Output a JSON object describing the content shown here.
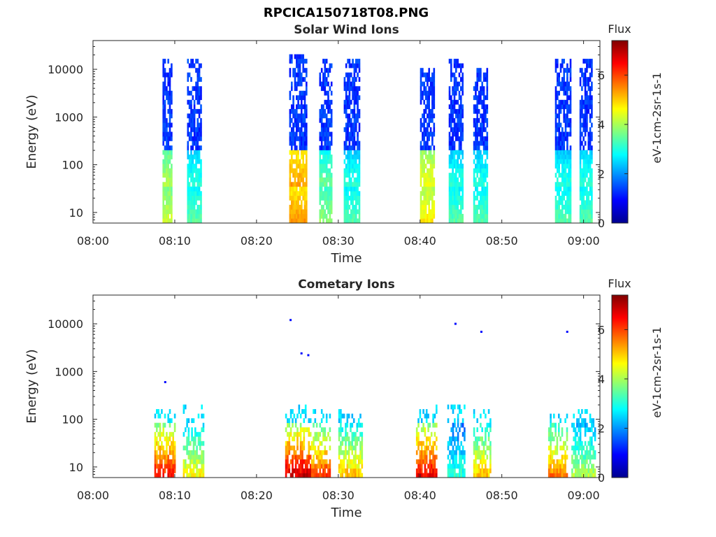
{
  "figure": {
    "title_line1": "RPCICA150718T08.PNG"
  },
  "colormap": "jet",
  "chart_data": [
    {
      "type": "heatmap",
      "title": "Solar Wind Ions",
      "xlabel": "Time",
      "ylabel": "Energy (eV)",
      "x_range_minutes": [
        0,
        62
      ],
      "y_scale": "log",
      "ylim": [
        6,
        40000
      ],
      "x_ticks": [
        "08:00",
        "08:10",
        "08:20",
        "08:30",
        "08:40",
        "08:50",
        "09:00"
      ],
      "y_ticks": [
        "10",
        "100",
        "1000",
        "10000"
      ],
      "colorbar": {
        "title": "Flux",
        "label": "eV-1cm-2sr-1s-1",
        "range": [
          0,
          7.4
        ],
        "ticks": [
          "0",
          "2",
          "4",
          "6"
        ]
      },
      "bursts": [
        {
          "t_start": "08:08:30",
          "t_end": "08:09:30",
          "e_min": 6,
          "e_max": 14000,
          "peak_flux": 5.0
        },
        {
          "t_start": "08:11:30",
          "t_end": "08:13:10",
          "e_min": 6,
          "e_max": 14000,
          "peak_flux": 4.0
        },
        {
          "t_start": "08:24:00",
          "t_end": "08:26:00",
          "e_min": 6,
          "e_max": 20000,
          "peak_flux": 6.2
        },
        {
          "t_start": "08:27:40",
          "t_end": "08:29:10",
          "e_min": 6,
          "e_max": 14000,
          "peak_flux": 4.5
        },
        {
          "t_start": "08:30:40",
          "t_end": "08:32:30",
          "e_min": 6,
          "e_max": 14000,
          "peak_flux": 4.0
        },
        {
          "t_start": "08:40:00",
          "t_end": "08:41:40",
          "e_min": 6,
          "e_max": 10000,
          "peak_flux": 5.5
        },
        {
          "t_start": "08:43:30",
          "t_end": "08:45:10",
          "e_min": 6,
          "e_max": 14000,
          "peak_flux": 4.0
        },
        {
          "t_start": "08:46:30",
          "t_end": "08:48:10",
          "e_min": 6,
          "e_max": 10000,
          "peak_flux": 4.0
        },
        {
          "t_start": "08:56:30",
          "t_end": "08:58:20",
          "e_min": 6,
          "e_max": 14000,
          "peak_flux": 4.0
        },
        {
          "t_start": "08:59:30",
          "t_end": "09:01:00",
          "e_min": 6,
          "e_max": 14000,
          "peak_flux": 4.0
        }
      ]
    },
    {
      "type": "heatmap",
      "title": "Cometary Ions",
      "xlabel": "Time",
      "ylabel": "Energy (eV)",
      "x_range_minutes": [
        0,
        62
      ],
      "y_scale": "log",
      "ylim": [
        6,
        40000
      ],
      "x_ticks": [
        "08:00",
        "08:10",
        "08:20",
        "08:30",
        "08:40",
        "08:50",
        "09:00"
      ],
      "y_ticks": [
        "10",
        "100",
        "1000",
        "10000"
      ],
      "colorbar": {
        "title": "Flux",
        "label": "eV-1cm-2sr-1s-1",
        "range": [
          0,
          7.4
        ],
        "ticks": [
          "0",
          "2",
          "4",
          "6"
        ]
      },
      "bursts": [
        {
          "t_start": "08:07:30",
          "t_end": "08:10:00",
          "e_min": 6,
          "e_max": 200,
          "peak_flux": 6.8
        },
        {
          "t_start": "08:11:00",
          "t_end": "08:13:30",
          "e_min": 6,
          "e_max": 200,
          "peak_flux": 5.0
        },
        {
          "t_start": "08:23:30",
          "t_end": "08:26:30",
          "e_min": 6,
          "e_max": 200,
          "peak_flux": 7.2
        },
        {
          "t_start": "08:26:40",
          "t_end": "08:29:00",
          "e_min": 6,
          "e_max": 150,
          "peak_flux": 6.5
        },
        {
          "t_start": "08:30:00",
          "t_end": "08:32:50",
          "e_min": 6,
          "e_max": 150,
          "peak_flux": 5.5
        },
        {
          "t_start": "08:39:30",
          "t_end": "08:42:00",
          "e_min": 6,
          "e_max": 200,
          "peak_flux": 7.0
        },
        {
          "t_start": "08:43:20",
          "t_end": "08:45:30",
          "e_min": 6,
          "e_max": 200,
          "peak_flux": 3.5
        },
        {
          "t_start": "08:46:30",
          "t_end": "08:48:40",
          "e_min": 6,
          "e_max": 150,
          "peak_flux": 5.5
        },
        {
          "t_start": "08:55:40",
          "t_end": "08:58:00",
          "e_min": 6,
          "e_max": 150,
          "peak_flux": 6.0
        },
        {
          "t_start": "08:58:30",
          "t_end": "09:01:30",
          "e_min": 6,
          "e_max": 150,
          "peak_flux": 4.5
        }
      ],
      "isolated_points": [
        {
          "t": "08:08:50",
          "energy": 600,
          "flux": 1.0
        },
        {
          "t": "08:24:10",
          "energy": 12000,
          "flux": 1.0
        },
        {
          "t": "08:25:30",
          "energy": 2400,
          "flux": 1.0
        },
        {
          "t": "08:26:20",
          "energy": 2200,
          "flux": 1.0
        },
        {
          "t": "08:44:20",
          "energy": 10000,
          "flux": 1.0
        },
        {
          "t": "08:47:30",
          "energy": 6800,
          "flux": 1.0
        },
        {
          "t": "08:58:00",
          "energy": 6800,
          "flux": 1.0
        }
      ]
    }
  ]
}
